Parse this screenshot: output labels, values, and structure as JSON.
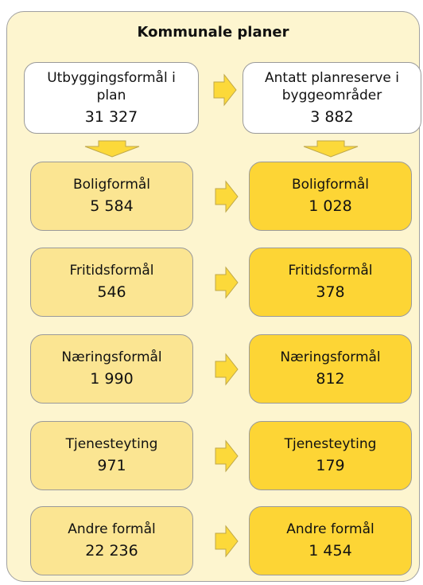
{
  "title": "Kommunale planer",
  "header": {
    "left": {
      "label": "Utbyggingsformål i plan",
      "value": "31 327"
    },
    "right": {
      "label": "Antatt planreserve i byggeområder",
      "value": "3 882"
    }
  },
  "rows": [
    {
      "left": {
        "label": "Boligformål",
        "value": "5 584"
      },
      "right": {
        "label": "Boligformål",
        "value": "1 028"
      }
    },
    {
      "left": {
        "label": "Fritidsformål",
        "value": "546"
      },
      "right": {
        "label": "Fritidsformål",
        "value": "378"
      }
    },
    {
      "left": {
        "label": "Næringsformål",
        "value": "1 990"
      },
      "right": {
        "label": "Næringsformål",
        "value": "812"
      }
    },
    {
      "left": {
        "label": "Tjenesteyting",
        "value": "971"
      },
      "right": {
        "label": "Tjenesteyting",
        "value": "179"
      }
    },
    {
      "left": {
        "label": "Andre formål",
        "value": "22 236"
      },
      "right": {
        "label": "Andre formål",
        "value": "1 454"
      }
    }
  ]
}
